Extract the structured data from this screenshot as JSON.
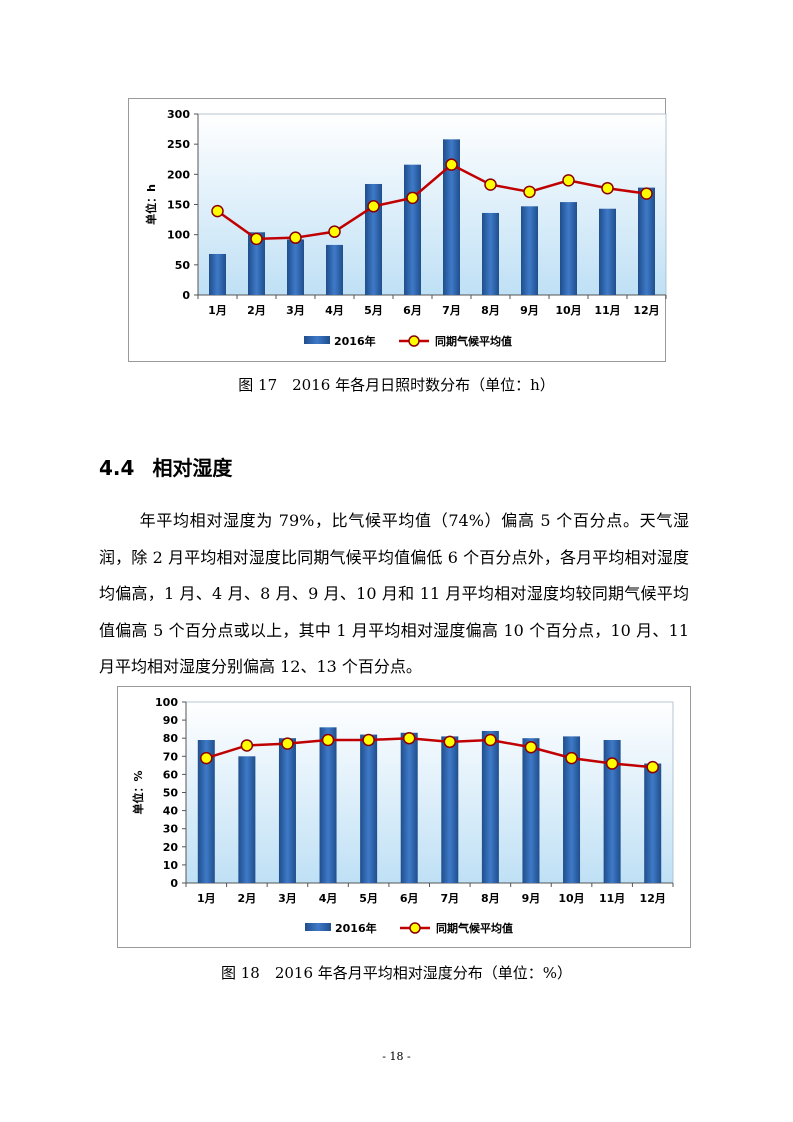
{
  "figure17": {
    "caption": "图 17　2016 年各月日照时数分布（单位：h）",
    "chart_data": {
      "type": "bar",
      "categories": [
        "1月",
        "2月",
        "3月",
        "4月",
        "5月",
        "6月",
        "7月",
        "8月",
        "9月",
        "10月",
        "11月",
        "12月"
      ],
      "series": [
        {
          "name": "2016年",
          "kind": "bar",
          "values": [
            68,
            104,
            92,
            83,
            184,
            216,
            258,
            136,
            147,
            154,
            143,
            178
          ]
        },
        {
          "name": "同期气候平均值",
          "kind": "line",
          "values": [
            139,
            93,
            95,
            105,
            147,
            161,
            216,
            183,
            171,
            190,
            177,
            168
          ]
        }
      ],
      "ylabel": "单位：h",
      "ylim": [
        0,
        300
      ],
      "yticks": [
        0,
        50,
        100,
        150,
        200,
        250,
        300
      ],
      "legend": "bottom"
    }
  },
  "section": {
    "number": "4.4",
    "title": "相对湿度"
  },
  "paragraph": "年平均相对湿度为 79%，比气候平均值（74%）偏高 5 个百分点。天气湿润，除 2 月平均相对湿度比同期气候平均值偏低 6 个百分点外，各月平均相对湿度均偏高，1 月、4 月、8 月、9 月、10 月和 11 月平均相对湿度均较同期气候平均值偏高 5 个百分点或以上，其中 1 月平均相对湿度偏高 10 个百分点，10 月、11 月平均相对湿度分别偏高 12、13 个百分点。",
  "figure18": {
    "caption": "图 18　2016 年各月平均相对湿度分布（单位：%）",
    "chart_data": {
      "type": "bar",
      "categories": [
        "1月",
        "2月",
        "3月",
        "4月",
        "5月",
        "6月",
        "7月",
        "8月",
        "9月",
        "10月",
        "11月",
        "12月"
      ],
      "series": [
        {
          "name": "2016年",
          "kind": "bar",
          "values": [
            79,
            70,
            80,
            86,
            82,
            83,
            81,
            84,
            80,
            81,
            79,
            66
          ]
        },
        {
          "name": "同期气候平均值",
          "kind": "line",
          "values": [
            69,
            76,
            77,
            79,
            79,
            80,
            78,
            79,
            75,
            69,
            66,
            64
          ]
        }
      ],
      "ylabel": "单位：%",
      "ylim": [
        0,
        100
      ],
      "yticks": [
        0,
        10,
        20,
        30,
        40,
        50,
        60,
        70,
        80,
        90,
        100
      ],
      "legend": "bottom"
    }
  },
  "page_number": "- 18 -",
  "colors": {
    "bar_dark": "#1f4e8c",
    "bar_light": "#3f7ac8",
    "plot_top": "#ffffff",
    "plot_bottom": "#bfe0f5",
    "line": "#c00000",
    "marker_fill": "#ffff00",
    "marker_stroke": "#8b0000"
  }
}
